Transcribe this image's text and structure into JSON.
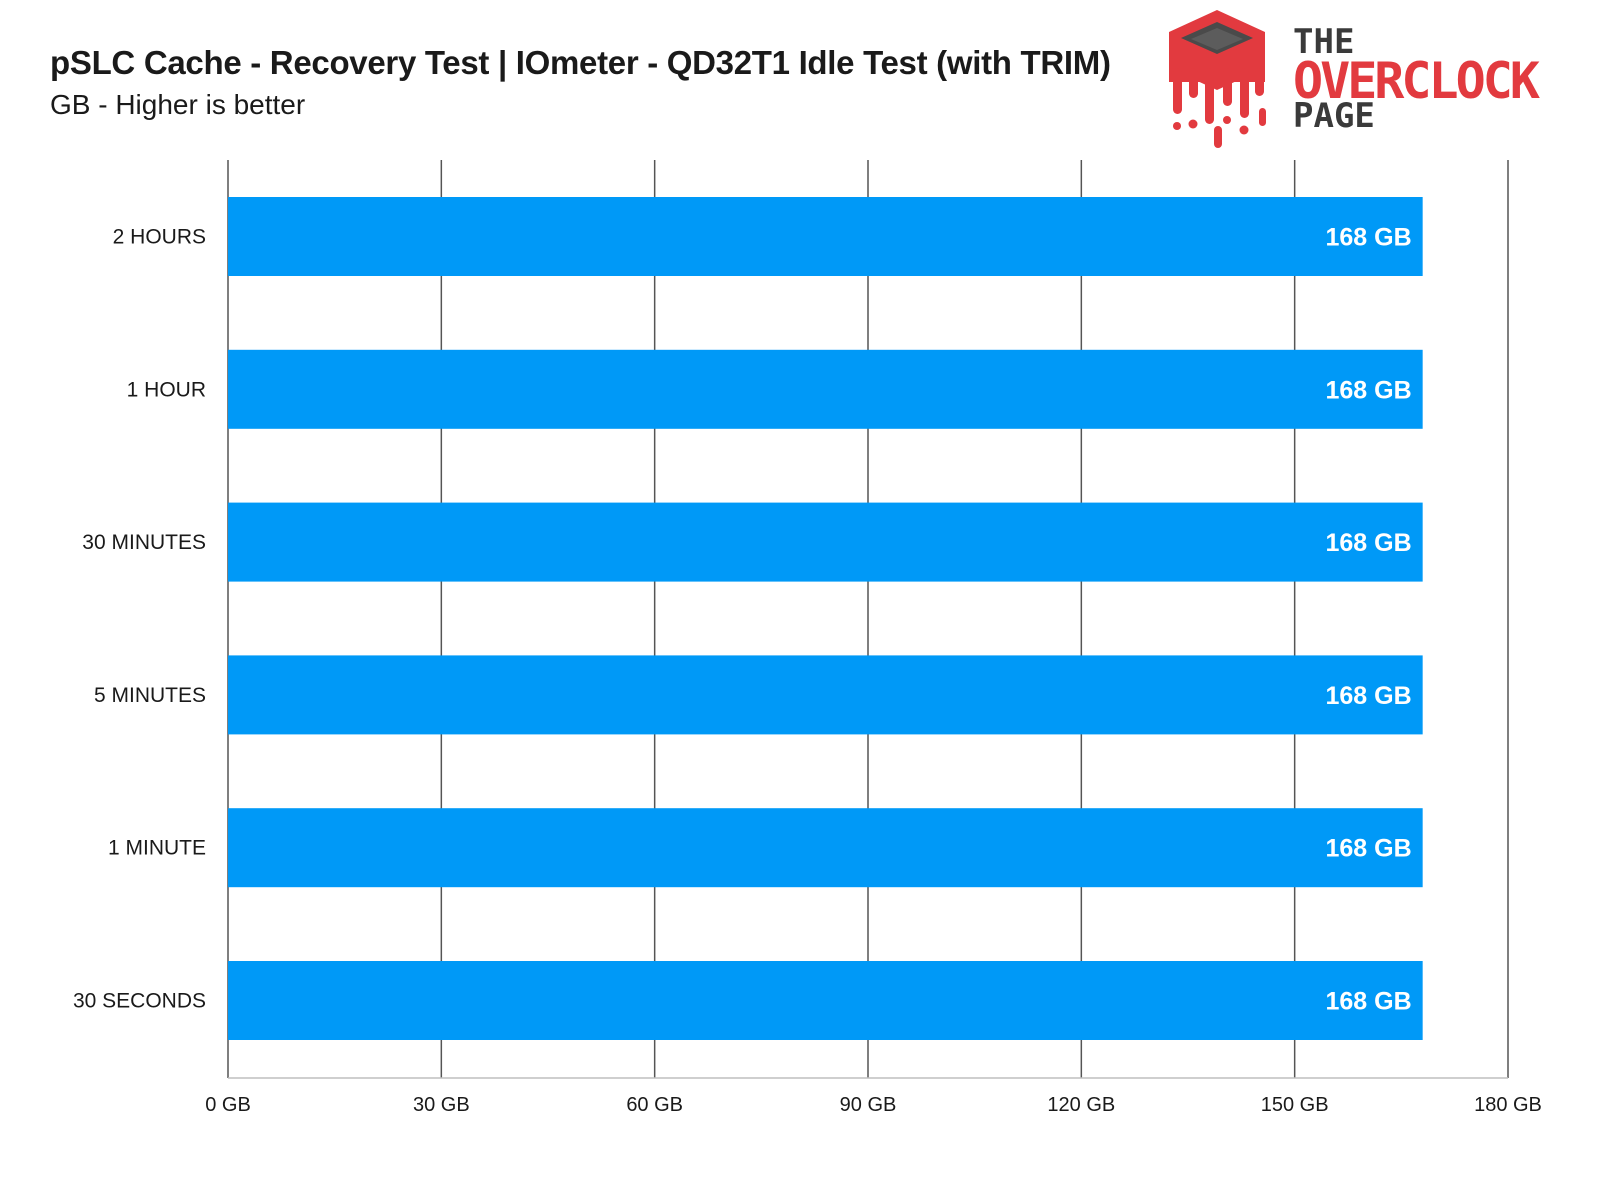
{
  "chart_data": {
    "type": "bar",
    "orientation": "horizontal",
    "title": "pSLC Cache - Recovery Test | IOmeter - QD32T1 Idle Test (with TRIM)",
    "subtitle": "GB - Higher is better",
    "categories": [
      "2 HOURS",
      "1 HOUR",
      "30 MINUTES",
      "5 MINUTES",
      "1 MINUTE",
      "30 SECONDS"
    ],
    "values": [
      168,
      168,
      168,
      168,
      168,
      168
    ],
    "data_labels": [
      "168 GB",
      "168 GB",
      "168 GB",
      "168 GB",
      "168 GB",
      "168 GB"
    ],
    "xlim": [
      0,
      180
    ],
    "x_ticks": [
      0,
      30,
      60,
      90,
      120,
      150,
      180
    ],
    "x_tick_labels": [
      "0 GB",
      "30 GB",
      "60 GB",
      "90 GB",
      "120 GB",
      "150 GB",
      "180 GB"
    ],
    "grid": true,
    "bar_color": "#0099f7",
    "grid_color": "#555555"
  },
  "logo": {
    "line1": "THE",
    "line2": "OVERCLOCK",
    "line3": "PAGE",
    "accent_color": "#e23a3f",
    "dark_color": "#3a3a3a",
    "icon": "melting-chip-icon"
  }
}
